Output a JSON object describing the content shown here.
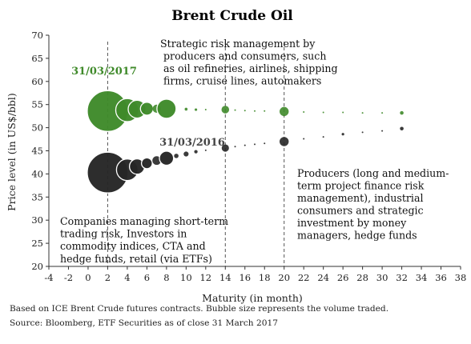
{
  "colors": {
    "green": "#3f8a2a",
    "dark": "#262626",
    "axis": "#333333",
    "dash": "#555555"
  },
  "chart_data": {
    "type": "scatter",
    "title": "Brent Crude Oil",
    "xlabel": "Maturity (in month)",
    "ylabel": "Price level (in US$/bbl)",
    "xlim": [
      -4,
      38
    ],
    "ylim": [
      20,
      70
    ],
    "xticks": [
      -4,
      -2,
      0,
      2,
      4,
      6,
      8,
      10,
      12,
      14,
      16,
      18,
      20,
      22,
      24,
      26,
      28,
      30,
      32,
      34,
      36,
      38
    ],
    "yticks": [
      20,
      25,
      30,
      35,
      40,
      45,
      50,
      55,
      60,
      65,
      70
    ],
    "grid": false,
    "bubble_size_meaning": "volume traded",
    "vertical_reference_lines": [
      2,
      14,
      20
    ],
    "series": [
      {
        "name": "31/03/2017",
        "color": "#3f8a2a",
        "label_color": "#3f8a2a",
        "points": [
          {
            "x": 2,
            "y": 53.6,
            "size": 100
          },
          {
            "x": 4,
            "y": 53.8,
            "size": 32
          },
          {
            "x": 5,
            "y": 54.0,
            "size": 19
          },
          {
            "x": 6,
            "y": 54.1,
            "size": 10
          },
          {
            "x": 7,
            "y": 54.1,
            "size": 4
          },
          {
            "x": 8,
            "y": 54.1,
            "size": 22
          },
          {
            "x": 10,
            "y": 54.0,
            "size": 0.5
          },
          {
            "x": 11,
            "y": 53.9,
            "size": 0.4
          },
          {
            "x": 12,
            "y": 53.9,
            "size": 0.15
          },
          {
            "x": 14,
            "y": 53.9,
            "size": 3.5
          },
          {
            "x": 15,
            "y": 53.8,
            "size": 0.05
          },
          {
            "x": 16,
            "y": 53.7,
            "size": 0.05
          },
          {
            "x": 17,
            "y": 53.6,
            "size": 0.05
          },
          {
            "x": 18,
            "y": 53.6,
            "size": 0.05
          },
          {
            "x": 20,
            "y": 53.5,
            "size": 5
          },
          {
            "x": 22,
            "y": 53.4,
            "size": 0.05
          },
          {
            "x": 24,
            "y": 53.3,
            "size": 0.05
          },
          {
            "x": 26,
            "y": 53.3,
            "size": 0.1
          },
          {
            "x": 28,
            "y": 53.2,
            "size": 0.05
          },
          {
            "x": 30,
            "y": 53.2,
            "size": 0.05
          },
          {
            "x": 32,
            "y": 53.2,
            "size": 0.8
          }
        ]
      },
      {
        "name": "31/03/2016",
        "color": "#262626",
        "label_color": "#444444",
        "points": [
          {
            "x": 2,
            "y": 40.3,
            "size": 100
          },
          {
            "x": 4,
            "y": 40.9,
            "size": 28
          },
          {
            "x": 5,
            "y": 41.6,
            "size": 14
          },
          {
            "x": 6,
            "y": 42.3,
            "size": 7
          },
          {
            "x": 7,
            "y": 42.9,
            "size": 4.5
          },
          {
            "x": 8,
            "y": 43.4,
            "size": 12
          },
          {
            "x": 9,
            "y": 43.9,
            "size": 1.2
          },
          {
            "x": 10,
            "y": 44.3,
            "size": 1.5
          },
          {
            "x": 11,
            "y": 44.8,
            "size": 0.7
          },
          {
            "x": 12,
            "y": 45.1,
            "size": 0.1
          },
          {
            "x": 14,
            "y": 45.6,
            "size": 3.2
          },
          {
            "x": 15,
            "y": 45.9,
            "size": 0.05
          },
          {
            "x": 16,
            "y": 46.2,
            "size": 0.05
          },
          {
            "x": 17,
            "y": 46.4,
            "size": 0.05
          },
          {
            "x": 18,
            "y": 46.6,
            "size": 0.05
          },
          {
            "x": 20,
            "y": 47.0,
            "size": 5
          },
          {
            "x": 22,
            "y": 47.6,
            "size": 0.05
          },
          {
            "x": 24,
            "y": 48.0,
            "size": 0.1
          },
          {
            "x": 26,
            "y": 48.6,
            "size": 0.4
          },
          {
            "x": 28,
            "y": 49.0,
            "size": 0.05
          },
          {
            "x": 30,
            "y": 49.3,
            "size": 0.05
          },
          {
            "x": 32,
            "y": 49.8,
            "size": 0.8
          }
        ]
      }
    ],
    "annotations": {
      "top": [
        "Strategic risk management by",
        "producers and consumers, such",
        "as oil refineries, airlines, shipping",
        "firms, cruise lines, automakers"
      ],
      "bottom_left": [
        "Companies managing short-term",
        "trading risk, Investors in",
        "commodity indices, CTA and",
        "hedge funds, retail (via ETFs)"
      ],
      "right": [
        "Producers (long and medium-",
        "term project finance risk",
        "management), industrial",
        "consumers and strategic",
        "investment by money",
        "managers, hedge funds"
      ]
    }
  },
  "footnote": {
    "line1": "Based on ICE Brent Crude futures contracts. Bubble size represents the volume traded.",
    "line2": "Source: Bloomberg, ETF Securities as of close 31 March 2017"
  }
}
